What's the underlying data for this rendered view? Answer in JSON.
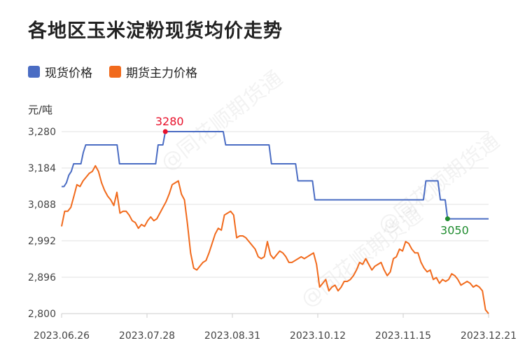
{
  "title": "各地区玉米淀粉现货均价走势",
  "unit": "元/吨",
  "watermark": "@同花顺期货通",
  "colors": {
    "spot": "#4a6cc3",
    "futures": "#f16a1c",
    "max": "#e8102a",
    "min": "#1e8b2e",
    "grid": "#e2e2e2",
    "axis": "#cccccc"
  },
  "chart_data": {
    "type": "line",
    "title": "各地区玉米淀粉现货均价走势",
    "ylabel": "元/吨",
    "ylim": [
      2800,
      3280
    ],
    "yticks": [
      2800,
      2896,
      2992,
      3088,
      3184,
      3280
    ],
    "ytick_labels": [
      "2,800",
      "2,896",
      "2,992",
      "3,088",
      "3,184",
      "3,280"
    ],
    "xticks": [
      "2023.06.26",
      "2023.07.28",
      "2023.08.31",
      "2023.10.12",
      "2023.11.15",
      "2023.12.21"
    ],
    "grid": true,
    "legend": "top-left",
    "series": [
      {
        "name": "现货价格",
        "color": "#4a6cc3",
        "values": [
          3135,
          3135,
          3145,
          3165,
          3175,
          3195,
          3195,
          3195,
          3195,
          3225,
          3245,
          3245,
          3245,
          3245,
          3245,
          3245,
          3245,
          3245,
          3245,
          3245,
          3245,
          3245,
          3245,
          3245,
          3195,
          3195,
          3195,
          3195,
          3195,
          3195,
          3195,
          3195,
          3195,
          3195,
          3195,
          3195,
          3195,
          3195,
          3195,
          3195,
          3245,
          3245,
          3245,
          3280,
          3280,
          3280,
          3280,
          3280,
          3280,
          3280,
          3280,
          3280,
          3280,
          3280,
          3280,
          3280,
          3280,
          3280,
          3280,
          3280,
          3280,
          3280,
          3280,
          3280,
          3280,
          3280,
          3280,
          3280,
          3245,
          3245,
          3245,
          3245,
          3245,
          3245,
          3245,
          3245,
          3245,
          3245,
          3245,
          3245,
          3245,
          3245,
          3245,
          3245,
          3245,
          3245,
          3245,
          3195,
          3195,
          3195,
          3195,
          3195,
          3195,
          3195,
          3195,
          3195,
          3195,
          3195,
          3150,
          3150,
          3150,
          3150,
          3150,
          3150,
          3150,
          3100,
          3100,
          3100,
          3100,
          3100,
          3100,
          3100,
          3100,
          3100,
          3100,
          3100,
          3100,
          3100,
          3100,
          3100,
          3100,
          3100,
          3100,
          3100,
          3100,
          3100,
          3100,
          3100,
          3100,
          3100,
          3100,
          3100,
          3100,
          3100,
          3100,
          3100,
          3100,
          3100,
          3100,
          3100,
          3100,
          3100,
          3100,
          3100,
          3100,
          3100,
          3100,
          3100,
          3100,
          3100,
          3100,
          3150,
          3150,
          3150,
          3150,
          3150,
          3150,
          3100,
          3100,
          3100,
          3050,
          3050,
          3050,
          3050,
          3050,
          3050,
          3050,
          3050,
          3050,
          3050,
          3050,
          3050,
          3050,
          3050,
          3050,
          3050,
          3050,
          3050
        ]
      },
      {
        "name": "期货主力价格",
        "color": "#f16a1c",
        "values": [
          3030,
          3070,
          3070,
          3080,
          3110,
          3140,
          3135,
          3150,
          3160,
          3170,
          3175,
          3190,
          3175,
          3145,
          3125,
          3110,
          3100,
          3085,
          3120,
          3065,
          3070,
          3070,
          3060,
          3045,
          3040,
          3025,
          3035,
          3030,
          3045,
          3055,
          3045,
          3050,
          3065,
          3080,
          3095,
          3115,
          3140,
          3145,
          3150,
          3115,
          3100,
          3035,
          2960,
          2920,
          2915,
          2925,
          2935,
          2940,
          2960,
          2985,
          3010,
          3025,
          3020,
          3060,
          3065,
          3070,
          3060,
          3000,
          3005,
          3005,
          3000,
          2990,
          2980,
          2970,
          2950,
          2945,
          2950,
          2990,
          2955,
          2945,
          2955,
          2965,
          2960,
          2950,
          2935,
          2935,
          2940,
          2945,
          2950,
          2945,
          2950,
          2955,
          2960,
          2930,
          2870,
          2880,
          2890,
          2860,
          2870,
          2875,
          2860,
          2870,
          2885,
          2885,
          2890,
          2900,
          2915,
          2935,
          2930,
          2945,
          2930,
          2915,
          2925,
          2930,
          2935,
          2915,
          2900,
          2910,
          2945,
          2950,
          2970,
          2965,
          2990,
          2985,
          2970,
          2960,
          2960,
          2935,
          2920,
          2910,
          2915,
          2890,
          2895,
          2880,
          2890,
          2885,
          2890,
          2905,
          2900,
          2890,
          2875,
          2880,
          2885,
          2880,
          2870,
          2875,
          2870,
          2860,
          2810,
          2800
        ]
      }
    ],
    "annotations": [
      {
        "label": "3280",
        "type": "max",
        "series": 0
      },
      {
        "label": "3050",
        "type": "min",
        "series": 0
      }
    ]
  }
}
